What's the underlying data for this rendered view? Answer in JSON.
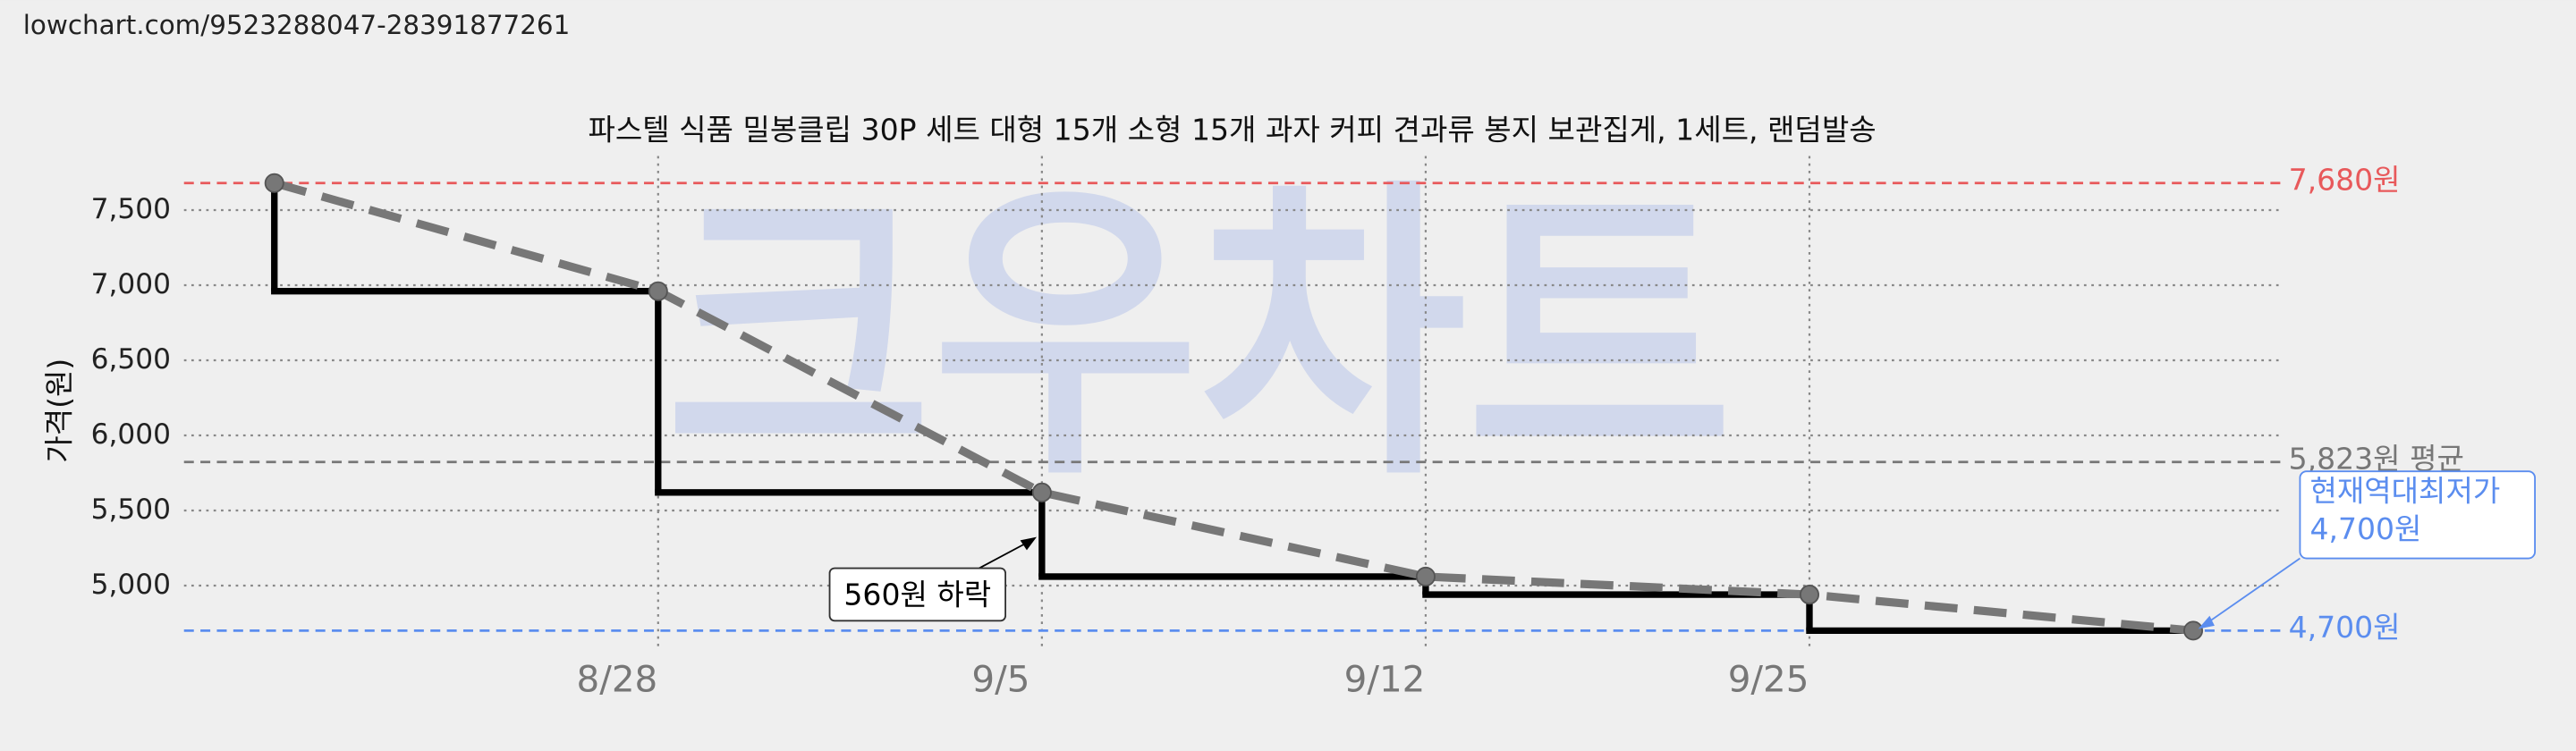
{
  "url": "lowchart.com/9523288047-28391877261",
  "chart_data": {
    "type": "line",
    "title": "파스텔 식품 밀봉클립 30P 세트 대형 15개 소형 15개 과자 커피 견과류 봉지 보관집게, 1세트, 랜덤발송",
    "watermark": "크우차트",
    "y_label": "가격(원)",
    "categories": [
      null,
      "8/28",
      "9/5",
      "9/12",
      "9/25",
      null
    ],
    "step": true,
    "series": [
      {
        "color": "#000000",
        "trend_color": "#777777",
        "values": [
          7680,
          6960,
          5620,
          5060,
          4940,
          4700
        ]
      }
    ],
    "ylim": [
      4580,
      7860
    ],
    "yticks": [
      {
        "value": 5000,
        "label": "5,000"
      },
      {
        "value": 5500,
        "label": "5,500"
      },
      {
        "value": 6000,
        "label": "6,000"
      },
      {
        "value": 6500,
        "label": "6,500"
      },
      {
        "value": 7000,
        "label": "7,000"
      },
      {
        "value": 7500,
        "label": "7,500"
      }
    ],
    "grid": true,
    "reference_lines": [
      {
        "value": 7680,
        "label": "7,680원",
        "color": "#e8595b"
      },
      {
        "value": 5823,
        "label": "5,823원 평균",
        "color": "#777777"
      },
      {
        "value": 4700,
        "label": "4,700원",
        "color": "#5b8def"
      }
    ],
    "annotations": [
      {
        "text": "560원 하락"
      },
      {
        "lines": [
          "현재역대최저가",
          "4,700원"
        ],
        "color": "#5b8def"
      }
    ]
  }
}
